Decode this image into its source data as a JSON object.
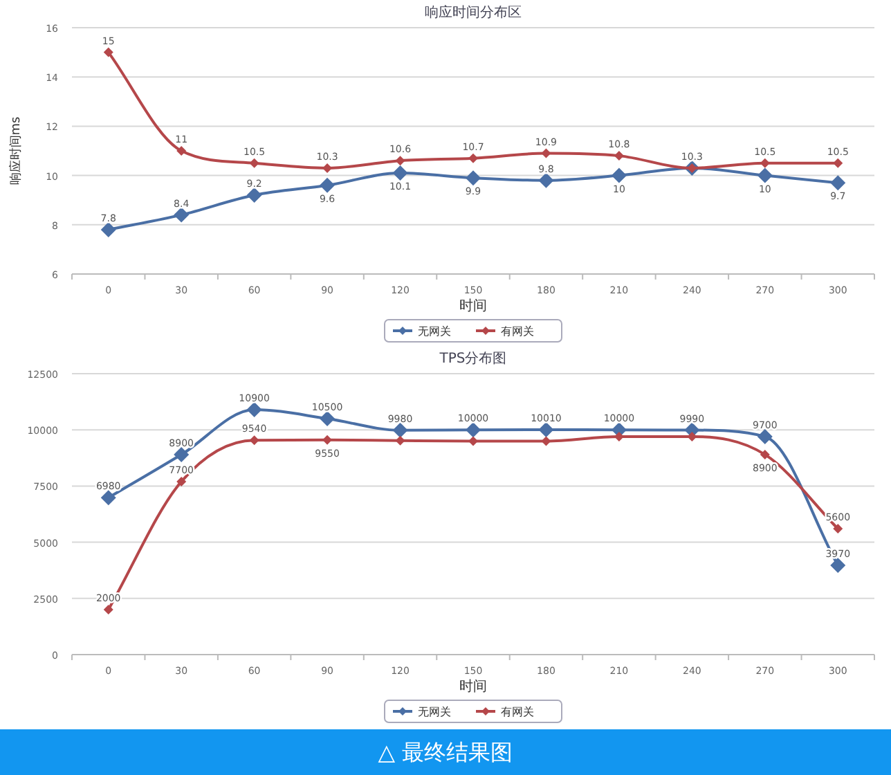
{
  "chart_data": [
    {
      "type": "line",
      "title": "响应时间分布区",
      "xlabel": "时间",
      "ylabel": "响应时间ms",
      "categories": [
        "0",
        "30",
        "60",
        "90",
        "120",
        "150",
        "180",
        "210",
        "240",
        "270",
        "300"
      ],
      "ylim": [
        6,
        16
      ],
      "yticks": [
        6,
        8,
        10,
        12,
        14,
        16
      ],
      "grid": "y",
      "legend": "bottom",
      "marker": "diamond",
      "series": [
        {
          "name": "无网关",
          "color": "#4a6fa5",
          "values": [
            7.8,
            8.4,
            9.2,
            9.6,
            10.1,
            9.9,
            9.8,
            10,
            10.3,
            10,
            9.7
          ],
          "value_labels": [
            "7.8",
            "8.4",
            "9.2",
            "9.6",
            "10.1",
            "9.9",
            "9.8",
            "10",
            null,
            "10",
            "9.7"
          ]
        },
        {
          "name": "有网关",
          "color": "#b5474a",
          "values": [
            15,
            11,
            10.5,
            10.3,
            10.6,
            10.7,
            10.9,
            10.8,
            10.3,
            10.5,
            10.5
          ],
          "value_labels": [
            "15",
            "11",
            "10.5",
            "10.3",
            "10.6",
            "10.7",
            "10.9",
            "10.8",
            "10.3",
            "10.5",
            "10.5"
          ]
        }
      ]
    },
    {
      "type": "line",
      "title": "TPS分布图",
      "xlabel": "时间",
      "categories": [
        "0",
        "30",
        "60",
        "90",
        "120",
        "150",
        "180",
        "210",
        "240",
        "270",
        "300"
      ],
      "ylim": [
        0,
        12500
      ],
      "yticks": [
        0,
        2500,
        5000,
        7500,
        10000,
        12500
      ],
      "grid": "y",
      "legend": "bottom",
      "marker": "diamond",
      "annotations": [
        "△ 最终结果图"
      ],
      "series": [
        {
          "name": "无网关",
          "color": "#4a6fa5",
          "values": [
            6980,
            8900,
            10900,
            10500,
            9980,
            10000,
            10010,
            10000,
            9990,
            9700,
            3970
          ],
          "value_labels": [
            "6980",
            "8900",
            "10900",
            "10500",
            "9980",
            "10000",
            "10010",
            "10000",
            "9990",
            "9700",
            "3970"
          ]
        },
        {
          "name": "有网关",
          "color": "#b5474a",
          "values": [
            2000,
            7700,
            9540,
            9550,
            9520,
            9500,
            9500,
            9700,
            9700,
            8900,
            5600
          ],
          "value_labels": [
            "2000",
            "7700",
            "9540",
            "9550",
            null,
            null,
            null,
            null,
            null,
            "8900",
            "5600"
          ]
        }
      ]
    }
  ]
}
